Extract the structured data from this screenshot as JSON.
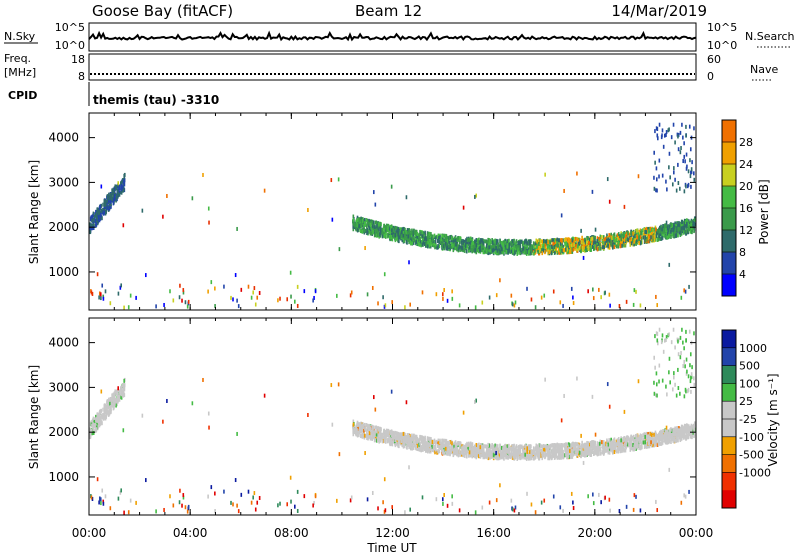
{
  "header": {
    "station": "Goose Bay (fitACF)",
    "beam": "Beam 12",
    "date": "14/Mar/2019"
  },
  "top_panels": {
    "nsky_label": "N.Sky",
    "nsearch_label": "N.Search",
    "nsky_ticks": [
      "10^5",
      "10^0"
    ],
    "freq_label_line1": "Freq.",
    "freq_label_line2": "[MHz]",
    "freq_ticks": [
      "18",
      "8"
    ],
    "nave_label": "Nave",
    "nave_ticks": [
      "60",
      "0"
    ],
    "cpid_label": "CPID",
    "cpid_text": "themis (tau) -3310"
  },
  "colors": {
    "power_scale": [
      "#0000ff",
      "#2244aa",
      "#2e6a6a",
      "#3a9a4a",
      "#44bb44",
      "#c8d020",
      "#f0a000",
      "#f07000",
      "#e83000",
      "#e00000"
    ],
    "velocity_scale": [
      "#e00000",
      "#f03000",
      "#f07000",
      "#f0a000",
      "#c8c8c8",
      "#c8c8c8",
      "#44bb44",
      "#2e8a5a",
      "#2244aa",
      "#0a1aa0"
    ]
  },
  "chart_data": [
    {
      "type": "heatmap",
      "name": "power",
      "ylabel": "Slant Range [km]",
      "y_ticks": [
        1000,
        2000,
        3000,
        4000
      ],
      "ylim": [
        150,
        4550
      ],
      "xlim_hours": [
        0,
        24
      ],
      "colorbar_label": "Power [dB]",
      "colorbar_ticks": [
        "4",
        "8",
        "12",
        "16",
        "20",
        "24",
        "28"
      ],
      "colorbar_range": [
        0,
        30
      ],
      "echo_regions": [
        {
          "t_start": 0.0,
          "t_end": 1.4,
          "range_start": 2000,
          "range_end": 3100,
          "power_db": 6
        },
        {
          "t_start": 10.4,
          "t_end": 23.9,
          "range_start": 1400,
          "range_end": 2300,
          "power_db": 12
        },
        {
          "t_start": 18.0,
          "t_end": 21.5,
          "range_start": 1550,
          "range_end": 1800,
          "power_db": 20
        },
        {
          "t_start": 22.5,
          "t_end": 23.9,
          "range_start": 2800,
          "range_end": 4300,
          "power_db": 5
        }
      ]
    },
    {
      "type": "heatmap",
      "name": "velocity",
      "ylabel": "Slant Range [km]",
      "y_ticks": [
        1000,
        2000,
        3000,
        4000
      ],
      "ylim": [
        150,
        4550
      ],
      "xlim_hours": [
        0,
        24
      ],
      "colorbar_label": "Velocity [m s⁻¹]",
      "colorbar_ticks": [
        "1000",
        "500",
        "100",
        "25",
        "-25",
        "-100",
        "-500",
        "-1000"
      ],
      "echo_regions": [
        {
          "t_start": 0.0,
          "t_end": 1.4,
          "range_start": 2000,
          "range_end": 3100,
          "velocity": 0
        },
        {
          "t_start": 10.4,
          "t_end": 23.9,
          "range_start": 1400,
          "range_end": 2300,
          "velocity": 0
        }
      ]
    }
  ],
  "x_axis": {
    "tick_labels": [
      "00:00",
      "04:00",
      "08:00",
      "12:00",
      "16:00",
      "20:00",
      "00:00"
    ],
    "label": "Time UT"
  }
}
